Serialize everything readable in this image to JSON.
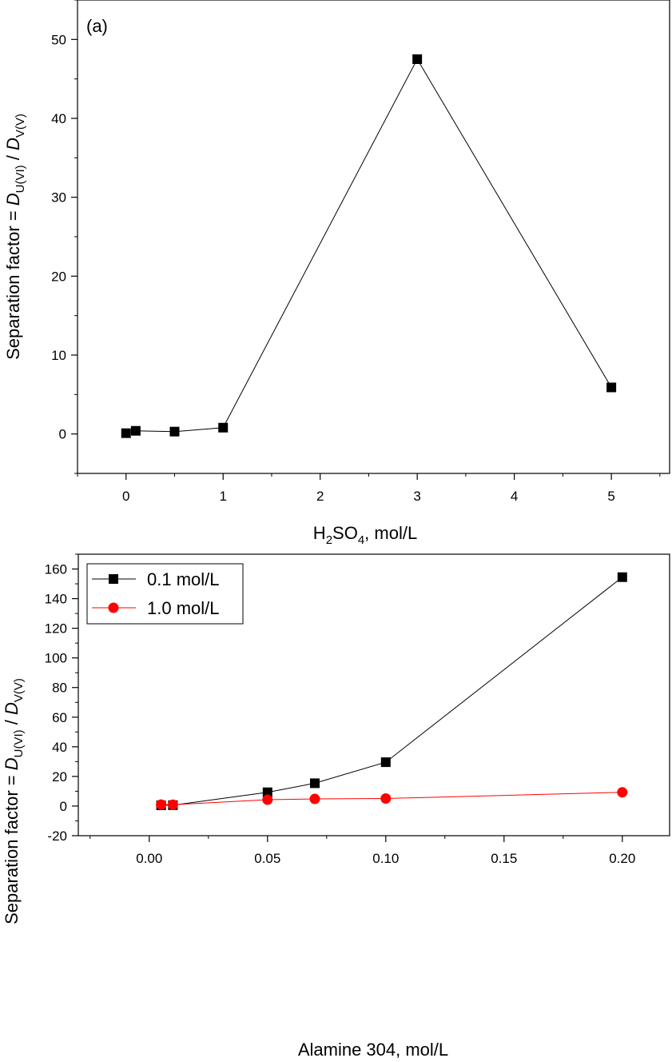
{
  "chart_data": [
    {
      "type": "scatter",
      "panel_label": "(a)",
      "xlabel": {
        "main": "H",
        "sub1": "2",
        "mid": "SO",
        "sub2": "4",
        "end": ", mol/L"
      },
      "ylabel": {
        "prefix": "Separation factor = ",
        "d1": "D",
        "d1sub": "U(VI)",
        "slash": " / ",
        "d2": "D",
        "d2sub": "V(V)"
      },
      "xlim": [
        -0.5,
        5.6
      ],
      "ylim": [
        -5,
        55
      ],
      "xticks": [
        0,
        1,
        2,
        3,
        4,
        5
      ],
      "yticks": [
        0,
        10,
        20,
        30,
        40,
        50
      ],
      "grid": false,
      "series": [
        {
          "marker": "square",
          "color": "#000000",
          "x": [
            0,
            0.1,
            0.5,
            1,
            3,
            5
          ],
          "y": [
            0.1,
            0.4,
            0.3,
            0.8,
            47.5,
            5.9
          ]
        }
      ]
    },
    {
      "type": "scatter",
      "xlabel": {
        "text": "Alamine 304, mol/L"
      },
      "ylabel": {
        "prefix": "Separation factor = ",
        "d1": "D",
        "d1sub": "U(VI)",
        "slash": " / ",
        "d2": "D",
        "d2sub": "V(V)"
      },
      "xlim": [
        -0.03,
        0.22
      ],
      "ylim": [
        -20,
        170
      ],
      "xticks": [
        "0.00",
        "0.05",
        "0.10",
        "0.15",
        "0.20"
      ],
      "yticks": [
        -20,
        0,
        20,
        40,
        60,
        80,
        100,
        120,
        140,
        160
      ],
      "grid": false,
      "legend_position": "top-left",
      "series": [
        {
          "name": "0.1 mol/L",
          "marker": "square",
          "color": "#000000",
          "x": [
            0.005,
            0.01,
            0.05,
            0.07,
            0.1,
            0.2
          ],
          "y": [
            0.5,
            0.6,
            9.3,
            15.4,
            29.6,
            154.5
          ]
        },
        {
          "name": "1.0 mol/L",
          "marker": "circle",
          "color": "#ff0000",
          "x": [
            0.005,
            0.01,
            0.05,
            0.07,
            0.1,
            0.2
          ],
          "y": [
            1.0,
            0.9,
            4.3,
            4.8,
            5.1,
            9.3
          ]
        }
      ]
    }
  ]
}
